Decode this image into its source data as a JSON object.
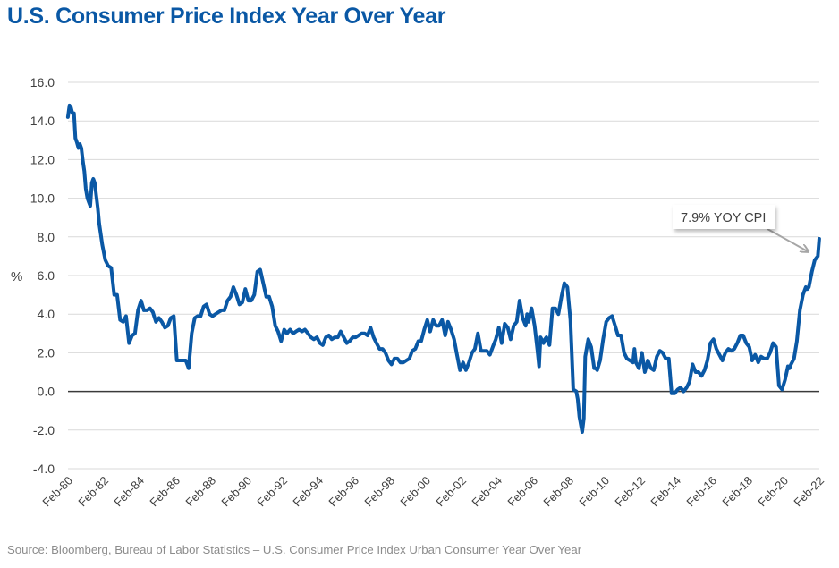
{
  "header": {
    "title": "U.S. Consumer Price Index Year Over Year"
  },
  "footer": {
    "source": "Source: Bloomberg, Bureau of Labor Statistics – U.S. Consumer Price Index Urban Consumer Year Over Year"
  },
  "colors": {
    "title": "#0a58a5",
    "series": "#0a58a5",
    "gridline": "#d9d9d9",
    "zero_line": "#3a3a3a",
    "annotation_arrow": "#a6a6a6",
    "source_text": "#8c8c8c"
  },
  "chart_data": {
    "type": "line",
    "title": "U.S. Consumer Price Index Year Over Year",
    "xlabel": "",
    "ylabel": "%",
    "ylim": [
      -4.0,
      16.0
    ],
    "xlim": [
      1980.083,
      2022.083
    ],
    "yticks": [
      "16.0",
      "14.0",
      "12.0",
      "10.0",
      "8.0",
      "6.0",
      "4.0",
      "2.0",
      "0.0",
      "-2.0",
      "-4.0"
    ],
    "ytick_values": [
      16,
      14,
      12,
      10,
      8,
      6,
      4,
      2,
      0,
      -2,
      -4
    ],
    "xticks": [
      "Feb-80",
      "Feb-82",
      "Feb-84",
      "Feb-86",
      "Feb-88",
      "Feb-90",
      "Feb-92",
      "Feb-94",
      "Feb-96",
      "Feb-98",
      "Feb-00",
      "Feb-02",
      "Feb-04",
      "Feb-06",
      "Feb-08",
      "Feb-10",
      "Feb-12",
      "Feb-14",
      "Feb-16",
      "Feb-18",
      "Feb-20",
      "Feb-22"
    ],
    "xtick_values": [
      1980.083,
      1982.083,
      1984.083,
      1986.083,
      1988.083,
      1990.083,
      1992.083,
      1994.083,
      1996.083,
      1998.083,
      2000.083,
      2002.083,
      2004.083,
      2006.083,
      2008.083,
      2010.083,
      2012.083,
      2014.083,
      2016.083,
      2018.083,
      2020.083,
      2022.083
    ],
    "grid": true,
    "legend": "none",
    "zero_line": true,
    "series": [
      {
        "name": "CPI YoY (%)",
        "x": [
          1980.08,
          1980.17,
          1980.25,
          1980.33,
          1980.42,
          1980.5,
          1980.58,
          1980.67,
          1980.75,
          1980.83,
          1980.92,
          1981.0,
          1981.08,
          1981.17,
          1981.25,
          1981.33,
          1981.42,
          1981.5,
          1981.58,
          1981.67,
          1981.75,
          1981.83,
          1982.0,
          1982.17,
          1982.33,
          1982.5,
          1982.67,
          1982.83,
          1983.0,
          1983.17,
          1983.33,
          1983.5,
          1983.67,
          1983.83,
          1984.0,
          1984.17,
          1984.33,
          1984.5,
          1984.67,
          1984.83,
          1985.0,
          1985.17,
          1985.33,
          1985.5,
          1985.67,
          1985.83,
          1986.0,
          1986.17,
          1986.33,
          1986.5,
          1986.67,
          1986.83,
          1987.0,
          1987.17,
          1987.33,
          1987.5,
          1987.67,
          1987.83,
          1988.0,
          1988.17,
          1988.33,
          1988.5,
          1988.67,
          1988.83,
          1989.0,
          1989.17,
          1989.33,
          1989.5,
          1989.67,
          1989.83,
          1990.0,
          1990.17,
          1990.33,
          1990.5,
          1990.67,
          1990.83,
          1991.0,
          1991.17,
          1991.33,
          1991.5,
          1991.67,
          1991.83,
          1992.0,
          1992.17,
          1992.33,
          1992.5,
          1992.67,
          1992.83,
          1993.0,
          1993.17,
          1993.33,
          1993.5,
          1993.67,
          1993.83,
          1994.0,
          1994.17,
          1994.33,
          1994.5,
          1994.67,
          1994.83,
          1995.0,
          1995.17,
          1995.33,
          1995.5,
          1995.67,
          1995.83,
          1996.0,
          1996.17,
          1996.33,
          1996.5,
          1996.67,
          1996.83,
          1997.0,
          1997.17,
          1997.33,
          1997.5,
          1997.67,
          1997.83,
          1998.0,
          1998.17,
          1998.33,
          1998.5,
          1998.67,
          1998.83,
          1999.0,
          1999.17,
          1999.33,
          1999.5,
          1999.67,
          1999.83,
          2000.0,
          2000.17,
          2000.33,
          2000.5,
          2000.67,
          2000.83,
          2001.0,
          2001.17,
          2001.33,
          2001.5,
          2001.67,
          2001.83,
          2002.0,
          2002.17,
          2002.33,
          2002.5,
          2002.67,
          2002.83,
          2003.0,
          2003.17,
          2003.33,
          2003.5,
          2003.67,
          2003.83,
          2004.0,
          2004.17,
          2004.33,
          2004.5,
          2004.67,
          2004.83,
          2005.0,
          2005.17,
          2005.33,
          2005.5,
          2005.67,
          2005.75,
          2005.83,
          2006.0,
          2006.17,
          2006.33,
          2006.42,
          2006.5,
          2006.67,
          2006.75,
          2006.83,
          2007.0,
          2007.17,
          2007.33,
          2007.5,
          2007.67,
          2007.83,
          2008.0,
          2008.17,
          2008.33,
          2008.5,
          2008.58,
          2008.67,
          2008.83,
          2008.92,
          2009.0,
          2009.17,
          2009.33,
          2009.5,
          2009.58,
          2009.67,
          2009.83,
          2010.0,
          2010.17,
          2010.33,
          2010.5,
          2010.67,
          2010.83,
          2011.0,
          2011.17,
          2011.33,
          2011.5,
          2011.67,
          2011.75,
          2011.83,
          2012.0,
          2012.17,
          2012.33,
          2012.5,
          2012.67,
          2012.83,
          2013.0,
          2013.17,
          2013.33,
          2013.5,
          2013.67,
          2013.83,
          2014.0,
          2014.17,
          2014.33,
          2014.5,
          2014.67,
          2014.83,
          2015.0,
          2015.17,
          2015.33,
          2015.5,
          2015.67,
          2015.83,
          2016.0,
          2016.17,
          2016.33,
          2016.5,
          2016.67,
          2016.83,
          2017.0,
          2017.17,
          2017.33,
          2017.5,
          2017.67,
          2017.83,
          2018.0,
          2018.17,
          2018.33,
          2018.5,
          2018.67,
          2018.83,
          2019.0,
          2019.17,
          2019.33,
          2019.5,
          2019.67,
          2019.83,
          2020.0,
          2020.17,
          2020.33,
          2020.42,
          2020.5,
          2020.67,
          2020.83,
          2021.0,
          2021.17,
          2021.33,
          2021.42,
          2021.5,
          2021.67,
          2021.83,
          2022.0,
          2022.08
        ],
        "y": [
          14.2,
          14.8,
          14.7,
          14.4,
          14.4,
          13.1,
          12.9,
          12.6,
          12.8,
          12.6,
          11.9,
          11.4,
          10.5,
          10.0,
          9.8,
          9.6,
          10.8,
          11.0,
          10.8,
          10.1,
          9.5,
          8.7,
          7.6,
          6.8,
          6.5,
          6.4,
          5.0,
          5.0,
          3.7,
          3.6,
          3.9,
          2.5,
          2.9,
          3.0,
          4.2,
          4.7,
          4.2,
          4.2,
          4.3,
          4.1,
          3.6,
          3.8,
          3.6,
          3.3,
          3.4,
          3.8,
          3.9,
          1.6,
          1.6,
          1.6,
          1.6,
          1.2,
          3.0,
          3.8,
          3.9,
          3.9,
          4.4,
          4.5,
          4.0,
          3.9,
          4.0,
          4.1,
          4.2,
          4.2,
          4.7,
          4.9,
          5.4,
          5.0,
          4.5,
          4.6,
          5.3,
          4.7,
          4.7,
          5.0,
          6.2,
          6.3,
          5.6,
          4.9,
          4.9,
          4.4,
          3.4,
          3.1,
          2.6,
          3.2,
          3.0,
          3.2,
          3.0,
          3.1,
          3.2,
          3.1,
          3.2,
          3.0,
          2.8,
          2.7,
          2.8,
          2.5,
          2.4,
          2.8,
          2.9,
          2.7,
          2.8,
          2.8,
          3.1,
          2.8,
          2.5,
          2.6,
          2.8,
          2.8,
          2.9,
          3.0,
          3.0,
          2.9,
          3.3,
          2.8,
          2.5,
          2.2,
          2.2,
          2.0,
          1.6,
          1.4,
          1.7,
          1.7,
          1.5,
          1.5,
          1.6,
          1.7,
          2.1,
          2.2,
          2.6,
          2.6,
          3.2,
          3.7,
          3.1,
          3.7,
          3.4,
          3.4,
          3.7,
          2.9,
          3.6,
          3.2,
          2.7,
          1.9,
          1.1,
          1.5,
          1.1,
          1.5,
          2.0,
          2.2,
          3.0,
          2.1,
          2.1,
          2.1,
          1.9,
          2.3,
          2.7,
          3.3,
          2.5,
          3.5,
          3.3,
          2.7,
          3.4,
          3.6,
          4.7,
          3.8,
          3.4,
          4.0,
          3.6,
          4.3,
          3.4,
          2.1,
          1.3,
          2.8,
          2.5,
          2.7,
          2.8,
          2.4,
          4.3,
          4.3,
          4.0,
          4.9,
          5.6,
          5.4,
          3.7,
          0.1,
          0.0,
          -0.4,
          -1.3,
          -2.1,
          -1.4,
          1.8,
          2.7,
          2.3,
          1.2,
          1.2,
          1.1,
          1.6,
          2.7,
          3.6,
          3.8,
          3.9,
          3.4,
          2.9,
          2.9,
          2.0,
          1.7,
          1.6,
          1.5,
          2.2,
          1.5,
          1.2,
          2.0,
          1.0,
          1.6,
          1.2,
          1.1,
          1.8,
          2.1,
          2.0,
          1.7,
          1.7,
          -0.1,
          -0.1,
          0.1,
          0.2,
          0.0,
          0.2,
          0.5,
          1.4,
          1.0,
          1.0,
          0.8,
          1.1,
          1.6,
          2.5,
          2.7,
          2.2,
          1.9,
          1.6,
          2.0,
          2.2,
          2.1,
          2.2,
          2.5,
          2.9,
          2.9,
          2.5,
          2.3,
          1.6,
          1.9,
          1.5,
          1.8,
          1.7,
          1.7,
          2.0,
          2.5,
          2.3,
          0.3,
          0.1,
          0.6,
          1.3,
          1.2,
          1.4,
          1.7,
          2.6,
          4.2,
          5.0,
          5.4,
          5.3,
          5.4,
          6.2,
          6.8,
          7.0,
          7.9
        ]
      }
    ],
    "annotations": [
      {
        "text": "7.9% YOY CPI",
        "points_to": {
          "x": 2021.92,
          "y": 7.5
        },
        "style": "callout box with grey arrow"
      }
    ]
  }
}
